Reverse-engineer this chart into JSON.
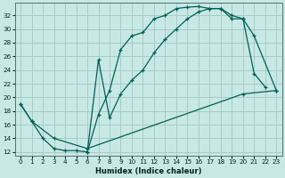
{
  "xlabel": "Humidex (Indice chaleur)",
  "background_color": "#c8e8e5",
  "grid_color": "#a8ccc8",
  "line_color": "#006055",
  "xlim": [
    -0.5,
    23.5
  ],
  "ylim": [
    11.5,
    33.8
  ],
  "yticks": [
    12,
    14,
    16,
    18,
    20,
    22,
    24,
    26,
    28,
    30,
    32
  ],
  "xticks": [
    0,
    1,
    2,
    3,
    4,
    5,
    6,
    7,
    8,
    9,
    10,
    11,
    12,
    13,
    14,
    15,
    16,
    17,
    18,
    19,
    20,
    21,
    22,
    23
  ],
  "curve1_x": [
    0,
    1,
    2,
    3,
    4,
    5,
    6,
    7,
    8,
    9,
    10,
    11,
    12,
    13,
    14,
    15,
    16,
    17,
    18,
    19,
    20,
    21,
    22
  ],
  "curve1_y": [
    19.0,
    16.5,
    14.0,
    12.5,
    12.2,
    12.2,
    12.0,
    17.5,
    21.0,
    27.0,
    29.0,
    29.5,
    31.5,
    32.0,
    33.0,
    33.2,
    33.3,
    33.0,
    33.0,
    31.5,
    31.5,
    23.5,
    21.5
  ],
  "curve2_x": [
    6,
    7,
    8,
    9,
    10,
    11,
    12,
    13,
    14,
    15,
    16,
    17,
    18,
    19,
    20,
    21,
    23
  ],
  "curve2_y": [
    12.0,
    25.5,
    17.0,
    20.5,
    22.5,
    24.0,
    26.5,
    28.5,
    30.0,
    31.5,
    32.5,
    33.0,
    33.0,
    32.0,
    31.5,
    29.0,
    21.0
  ],
  "curve3_x": [
    0,
    1,
    3,
    6,
    20,
    23
  ],
  "curve3_y": [
    19.0,
    16.5,
    14.0,
    12.5,
    20.5,
    21.0
  ]
}
